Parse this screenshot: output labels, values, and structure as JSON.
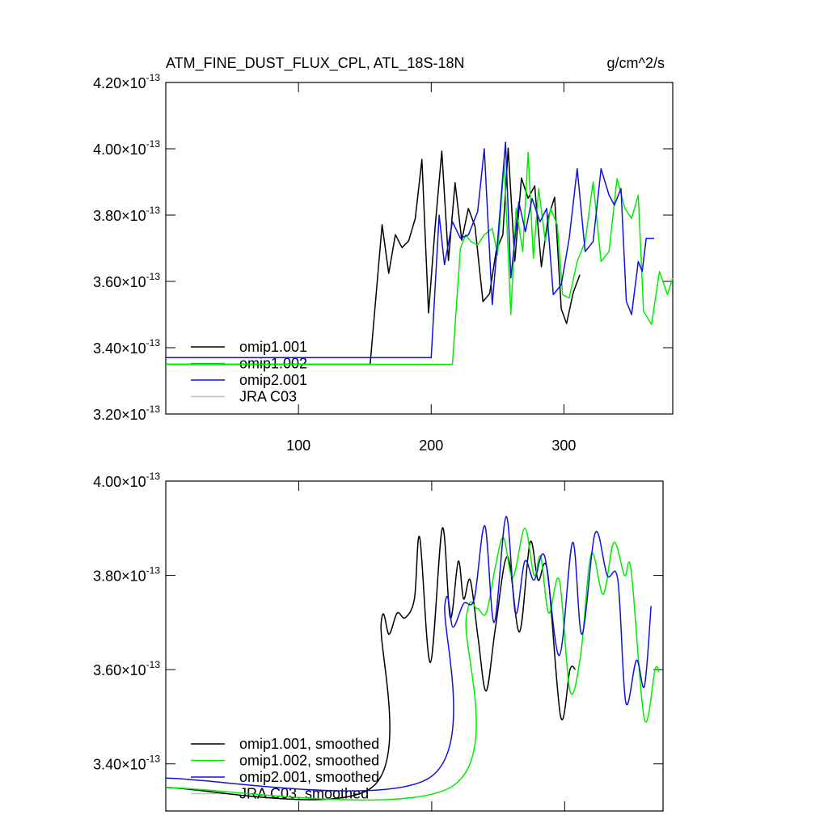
{
  "chart_data": [
    {
      "type": "line",
      "title": "ATM_FINE_DUST_FLUX_CPL, ATL_18S-18N",
      "unit_label": "g/cm^2/s",
      "xlim": [
        0,
        382
      ],
      "xticks": [
        100,
        200,
        300
      ],
      "xtick_labels": true,
      "ylim": [
        3.2e-13,
        4.2e-13
      ],
      "yticks": [
        {
          "value": 3.2e-13,
          "label": "3.20×10-13"
        },
        {
          "value": 3.4e-13,
          "label": "3.40×10-13"
        },
        {
          "value": 3.6e-13,
          "label": "3.60×10-13"
        },
        {
          "value": 3.8e-13,
          "label": "3.80×10-13"
        },
        {
          "value": 4e-13,
          "label": "4.00×10-13"
        },
        {
          "value": 4.2e-13,
          "label": "4.20×10-13"
        }
      ],
      "legend": "lower left",
      "smooth": false,
      "series": [
        {
          "name": "omip1.001",
          "color": "#000000",
          "x": [
            0,
            154,
            163,
            168,
            173,
            178,
            183,
            188,
            193,
            198,
            203,
            208,
            213,
            218,
            223,
            228,
            233,
            239,
            244,
            249,
            254,
            258,
            263,
            268,
            273,
            278,
            283,
            288,
            293,
            298,
            302,
            307,
            312
          ],
          "values": [
            3.35e-13,
            3.35e-13,
            3.771e-13,
            3.624e-13,
            3.741e-13,
            3.702e-13,
            3.722e-13,
            3.79e-13,
            3.968e-13,
            3.505e-13,
            3.766e-13,
            3.993e-13,
            3.663e-13,
            3.898e-13,
            3.724e-13,
            3.82e-13,
            3.766e-13,
            3.539e-13,
            3.563e-13,
            3.693e-13,
            3.741e-13,
            4.002e-13,
            3.661e-13,
            3.912e-13,
            3.851e-13,
            3.888e-13,
            3.644e-13,
            3.79e-13,
            3.854e-13,
            3.517e-13,
            3.473e-13,
            3.566e-13,
            3.62e-13
          ]
        },
        {
          "name": "omip1.002",
          "color": "#00ee00",
          "x": [
            0,
            216,
            222,
            226,
            230,
            235,
            240,
            246,
            250,
            255,
            260,
            264,
            269,
            273,
            277,
            281,
            286,
            290,
            295,
            299,
            304,
            310,
            316,
            322,
            328,
            334,
            340,
            346,
            351,
            356,
            360,
            366,
            372,
            378,
            382
          ],
          "values": [
            3.35e-13,
            3.35e-13,
            3.7e-13,
            3.74e-13,
            3.72e-13,
            3.71e-13,
            3.74e-13,
            3.76e-13,
            3.68e-13,
            3.96e-13,
            3.5e-13,
            3.82e-13,
            3.69e-13,
            3.99e-13,
            3.67e-13,
            3.88e-13,
            3.72e-13,
            3.82e-13,
            3.77e-13,
            3.56e-13,
            3.55e-13,
            3.66e-13,
            3.72e-13,
            3.9e-13,
            3.66e-13,
            3.69e-13,
            3.91e-13,
            3.82e-13,
            3.79e-13,
            3.86e-13,
            3.51e-13,
            3.47e-13,
            3.63e-13,
            3.56e-13,
            3.61e-13
          ]
        },
        {
          "name": "omip2.001",
          "color": "#1010e0",
          "x": [
            0,
            200,
            206,
            210,
            216,
            222,
            228,
            235,
            240,
            246,
            250,
            256,
            260,
            266,
            271,
            276,
            282,
            287,
            292,
            298,
            304,
            310,
            316,
            322,
            328,
            334,
            338,
            343,
            347,
            351,
            356,
            359,
            362,
            368
          ],
          "values": [
            3.37e-13,
            3.37e-13,
            3.8e-13,
            3.65e-13,
            3.78e-13,
            3.73e-13,
            3.74e-13,
            3.81e-13,
            4e-13,
            3.53e-13,
            3.72e-13,
            4.02e-13,
            3.61e-13,
            3.84e-13,
            3.75e-13,
            3.85e-13,
            3.78e-13,
            3.82e-13,
            3.56e-13,
            3.59e-13,
            3.73e-13,
            3.94e-13,
            3.69e-13,
            3.72e-13,
            3.94e-13,
            3.86e-13,
            3.83e-13,
            3.88e-13,
            3.54e-13,
            3.5e-13,
            3.66e-13,
            3.63e-13,
            3.73e-13,
            3.73e-13
          ]
        },
        {
          "name": "JRA C03",
          "color": "#c0c0c0",
          "x": [],
          "values": []
        }
      ]
    },
    {
      "type": "line",
      "xlim": [
        0,
        374
      ],
      "xticks": [
        100,
        200,
        300
      ],
      "xtick_labels": false,
      "ylim": [
        3.3e-13,
        4e-13
      ],
      "yticks": [
        {
          "value": 3.4e-13,
          "label": "3.40×10-13"
        },
        {
          "value": 3.6e-13,
          "label": "3.60×10-13"
        },
        {
          "value": 3.8e-13,
          "label": "3.80×10-13"
        },
        {
          "value": 4e-13,
          "label": "4.00×10-13"
        }
      ],
      "legend": "lower left",
      "smooth": true,
      "series": [
        {
          "name": "omip1.001, smoothed",
          "color": "#000000",
          "x": [
            0,
            155,
            162,
            168,
            174,
            180,
            187,
            191,
            199,
            208,
            214,
            220,
            224,
            229,
            235,
            241,
            248,
            257,
            266,
            274,
            280,
            287,
            297,
            304,
            308
          ],
          "values": [
            3.35e-13,
            3.35e-13,
            3.7e-13,
            3.675e-13,
            3.72e-13,
            3.71e-13,
            3.75e-13,
            3.88e-13,
            3.615e-13,
            3.9e-13,
            3.71e-13,
            3.83e-13,
            3.75e-13,
            3.79e-13,
            3.665e-13,
            3.555e-13,
            3.69e-13,
            3.84e-13,
            3.68e-13,
            3.87e-13,
            3.79e-13,
            3.81e-13,
            3.5e-13,
            3.6e-13,
            3.6e-13
          ]
        },
        {
          "name": "omip1.002, smoothed",
          "color": "#00ee00",
          "x": [
            0,
            214,
            226,
            234,
            241,
            248,
            254,
            261,
            270,
            277,
            282,
            288,
            296,
            304,
            312,
            320,
            329,
            337,
            345,
            350,
            360,
            368,
            371
          ],
          "values": [
            3.35e-13,
            3.35e-13,
            3.71e-13,
            3.73e-13,
            3.72e-13,
            3.82e-13,
            3.88e-13,
            3.795e-13,
            3.9e-13,
            3.8e-13,
            3.84e-13,
            3.72e-13,
            3.79e-13,
            3.555e-13,
            3.63e-13,
            3.845e-13,
            3.76e-13,
            3.87e-13,
            3.8e-13,
            3.81e-13,
            3.495e-13,
            3.6e-13,
            3.595e-13
          ]
        },
        {
          "name": "omip2.001, smoothed",
          "color": "#1010e0",
          "x": [
            0,
            198,
            210,
            216,
            224,
            232,
            240,
            247,
            256,
            263,
            270,
            277,
            285,
            296,
            306,
            313,
            323,
            332,
            340,
            346,
            354,
            360,
            365
          ],
          "values": [
            3.37e-13,
            3.37e-13,
            3.74e-13,
            3.69e-13,
            3.74e-13,
            3.75e-13,
            3.905e-13,
            3.7e-13,
            3.925e-13,
            3.72e-13,
            3.83e-13,
            3.79e-13,
            3.84e-13,
            3.63e-13,
            3.87e-13,
            3.675e-13,
            3.89e-13,
            3.8e-13,
            3.79e-13,
            3.53e-13,
            3.62e-13,
            3.565e-13,
            3.735e-13
          ]
        },
        {
          "name": "JRA C03, smoothed",
          "color": "#c0c0c0",
          "x": [],
          "values": []
        }
      ]
    }
  ]
}
